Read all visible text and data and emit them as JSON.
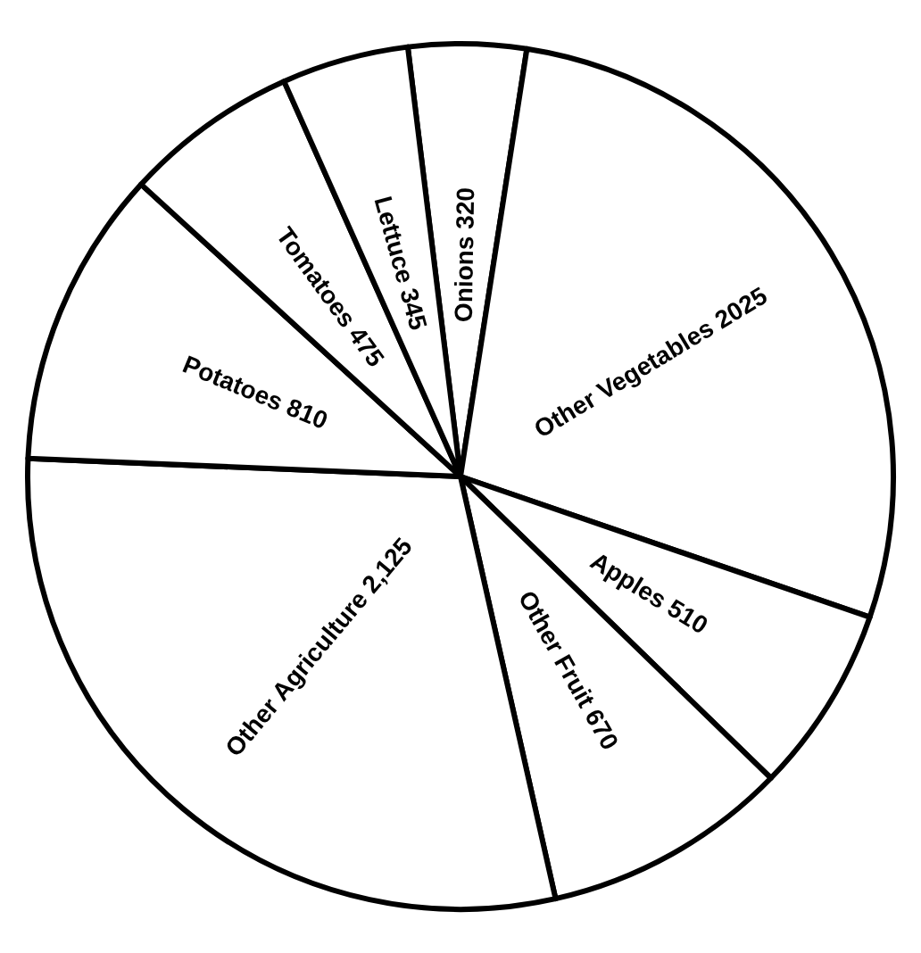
{
  "chart_data": {
    "type": "pie",
    "categories": [
      "Onions",
      "Other Vegetables",
      "Apples",
      "Other Fruit",
      "Other Agriculture",
      "Potatoes",
      "Tomatoes",
      "Lettuce"
    ],
    "values": [
      320,
      2025,
      510,
      670,
      2125,
      810,
      475,
      345
    ],
    "value_labels": [
      "320",
      "2025",
      "510",
      "670",
      "2,125",
      "810",
      "475",
      "345"
    ],
    "colors": [
      "#ffffff",
      "#ffffff",
      "#ffffff",
      "#ffffff",
      "#ffffff",
      "#ffffff",
      "#ffffff",
      "#ffffff"
    ],
    "legend": false
  }
}
